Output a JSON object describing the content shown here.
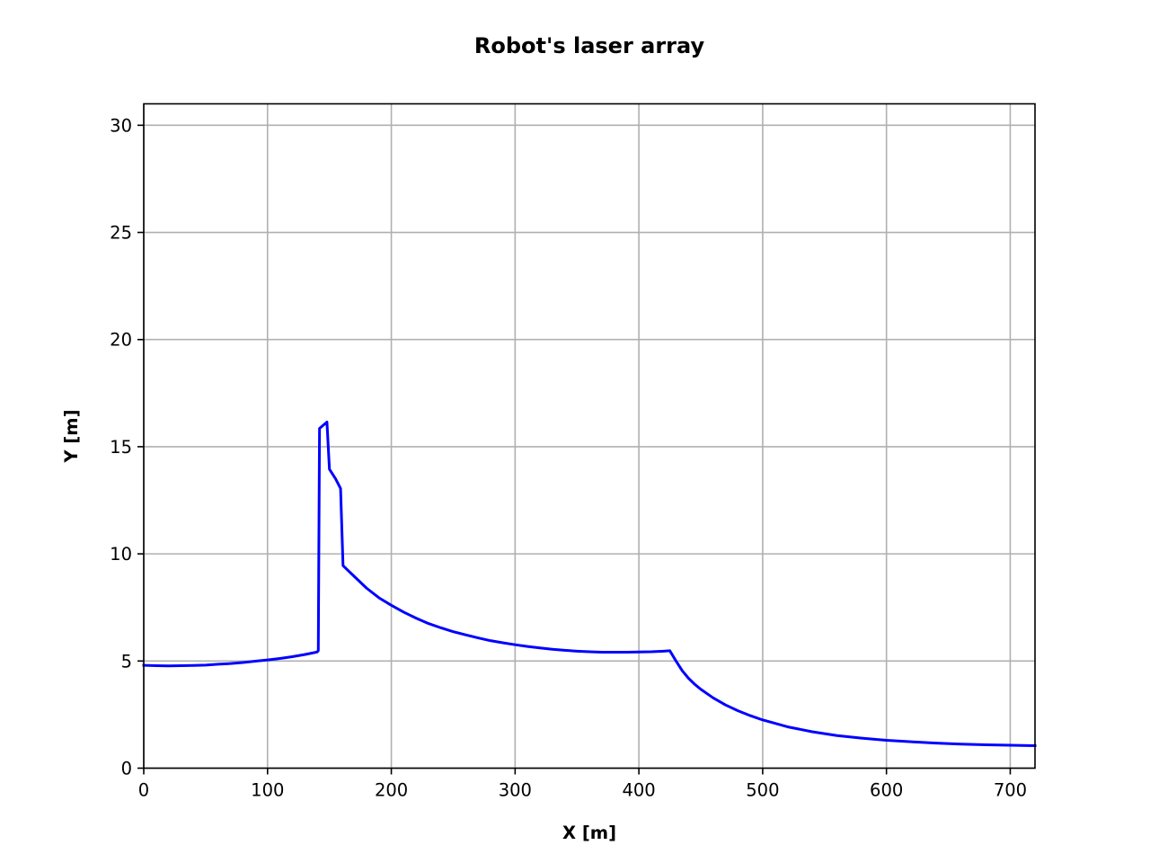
{
  "chart_data": {
    "type": "line",
    "title": "Robot's laser array",
    "xlabel": "X [m]",
    "ylabel": "Y [m]",
    "xlim": [
      0,
      720
    ],
    "ylim": [
      0,
      31
    ],
    "grid": true,
    "legend": "none",
    "x_ticks": [
      0,
      100,
      200,
      300,
      400,
      500,
      600,
      700
    ],
    "y_ticks": [
      0,
      5,
      10,
      15,
      20,
      25,
      30
    ],
    "series": [
      {
        "color": "#0000ff",
        "x": [
          0,
          10,
          20,
          30,
          40,
          50,
          60,
          70,
          80,
          90,
          100,
          110,
          120,
          130,
          135,
          140,
          141,
          142,
          148,
          150,
          155,
          159,
          161,
          170,
          180,
          190,
          200,
          210,
          220,
          230,
          240,
          250,
          260,
          270,
          280,
          290,
          300,
          310,
          320,
          330,
          340,
          350,
          360,
          370,
          380,
          390,
          400,
          410,
          420,
          425,
          430,
          435,
          440,
          445,
          450,
          460,
          470,
          480,
          490,
          500,
          520,
          540,
          560,
          580,
          600,
          620,
          640,
          660,
          680,
          700,
          720
        ],
        "y": [
          4.8,
          4.78,
          4.77,
          4.78,
          4.79,
          4.81,
          4.85,
          4.88,
          4.93,
          4.99,
          5.05,
          5.12,
          5.2,
          5.3,
          5.36,
          5.42,
          5.48,
          15.85,
          16.15,
          13.95,
          13.5,
          13.05,
          9.45,
          8.95,
          8.4,
          7.95,
          7.6,
          7.28,
          7.0,
          6.75,
          6.55,
          6.37,
          6.22,
          6.08,
          5.95,
          5.85,
          5.76,
          5.68,
          5.61,
          5.55,
          5.5,
          5.46,
          5.43,
          5.41,
          5.41,
          5.41,
          5.42,
          5.43,
          5.46,
          5.48,
          5.0,
          4.55,
          4.2,
          3.92,
          3.68,
          3.28,
          2.95,
          2.68,
          2.45,
          2.25,
          1.93,
          1.7,
          1.52,
          1.4,
          1.3,
          1.23,
          1.17,
          1.12,
          1.09,
          1.07,
          1.05
        ]
      }
    ]
  }
}
